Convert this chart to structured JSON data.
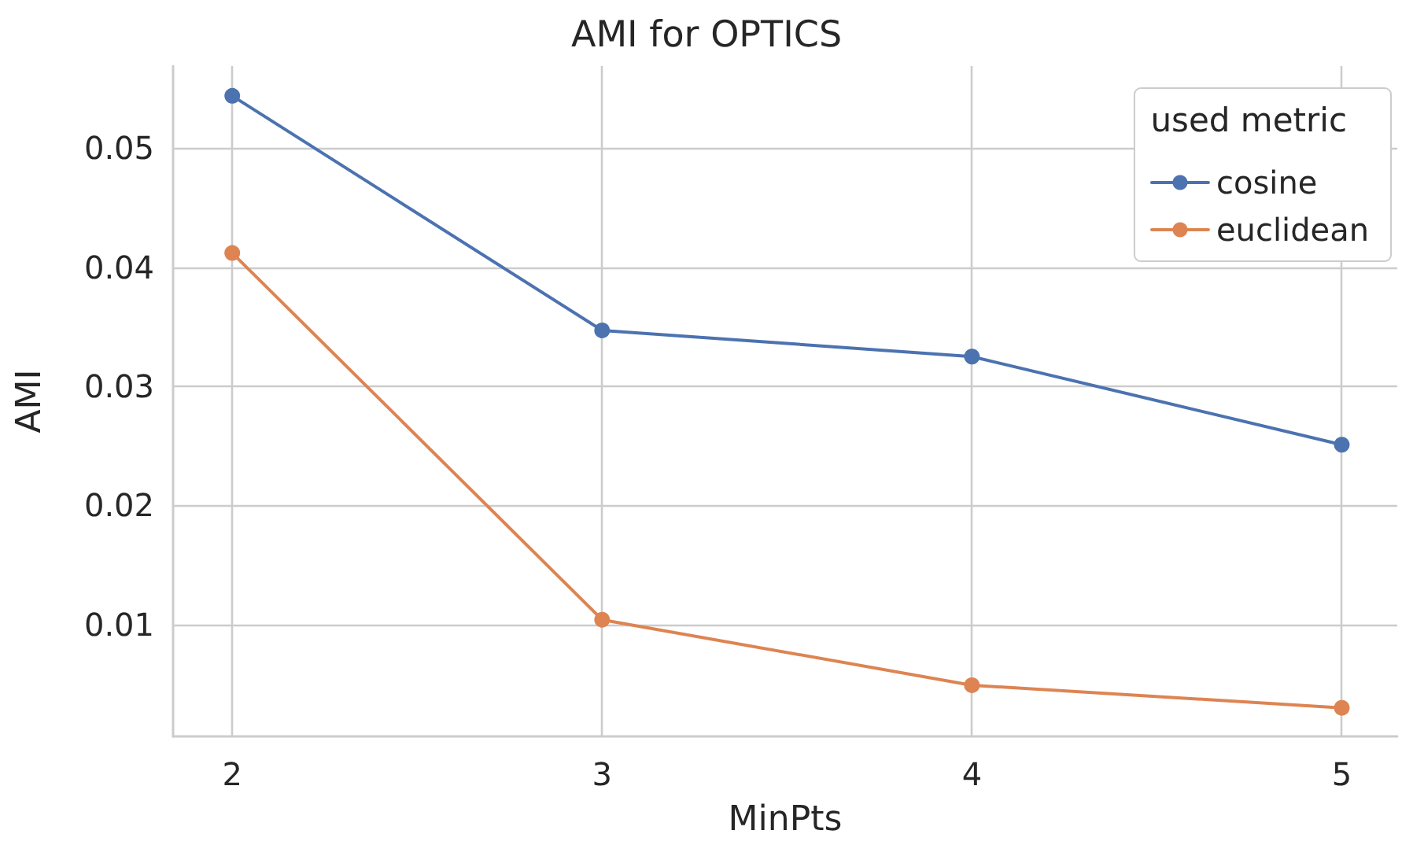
{
  "chart_data": {
    "type": "line",
    "title": "AMI for OPTICS",
    "xlabel": "MinPts",
    "ylabel": "AMI",
    "legend_title": "used metric",
    "x": [
      2,
      3,
      4,
      5
    ],
    "series": [
      {
        "name": "cosine",
        "color": "#4c72b0",
        "values": [
          0.0544,
          0.0347,
          0.0325,
          0.0251
        ]
      },
      {
        "name": "euclidean",
        "color": "#dd8452",
        "values": [
          0.0412,
          0.0104,
          0.0049,
          0.003
        ]
      }
    ],
    "xlim": [
      1.84,
      5.15
    ],
    "xticks": [
      2,
      3,
      4,
      5
    ],
    "ylim": [
      0.0006,
      0.0569
    ],
    "yticks": [
      0.01,
      0.02,
      0.03,
      0.04,
      0.05
    ],
    "grid": true,
    "legend": "top right",
    "marker": "circle",
    "line_style": "solid"
  }
}
